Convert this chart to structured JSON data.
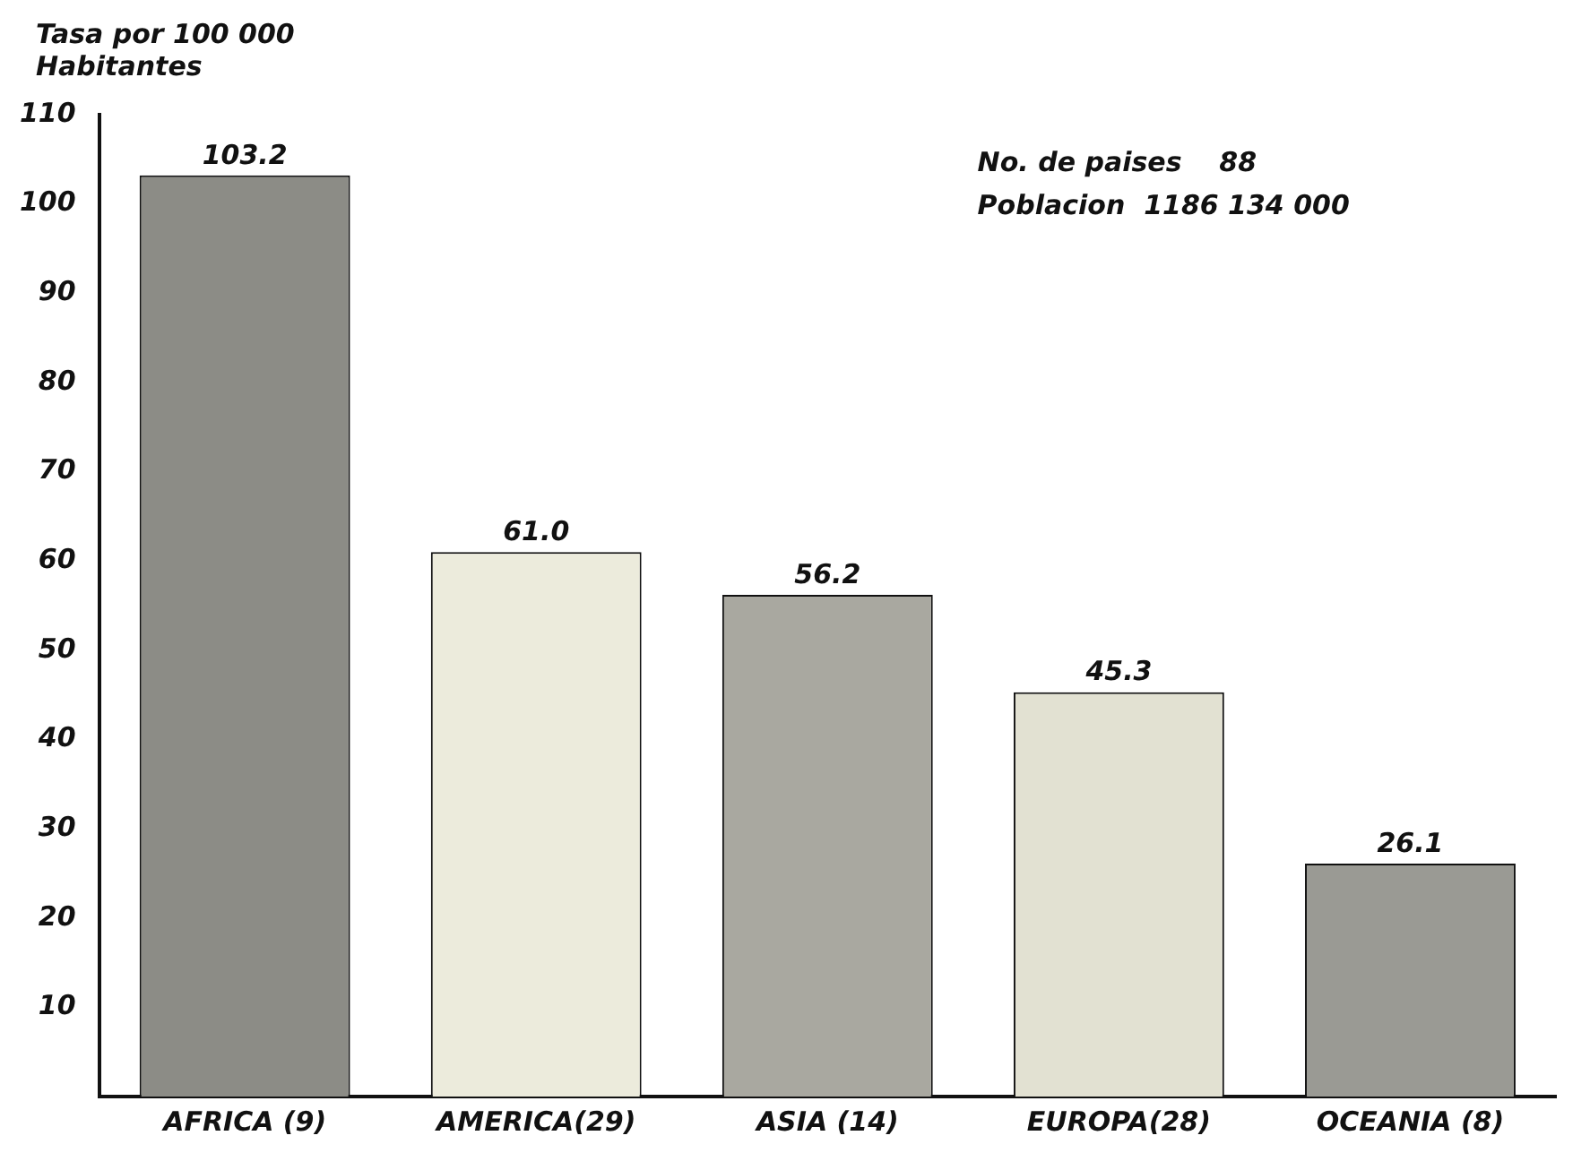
{
  "chart_data": {
    "type": "bar",
    "ylabel": "Tasa por 100 000 Habitantes",
    "categories": [
      "AFRICA (9)",
      "AMERICA(29)",
      "ASIA (14)",
      "EUROPA(28)",
      "OCEANIA (8)"
    ],
    "values": [
      103.2,
      61.0,
      56.2,
      45.3,
      26.1
    ],
    "value_labels": [
      "103.2",
      "61.0",
      "56.2",
      "45.3",
      "26.1"
    ],
    "colors": [
      "#8c8c86",
      "#ecebdc",
      "#a9a8a0",
      "#e2e1d2",
      "#9a9a94"
    ],
    "annotations": [
      "No. de paises    88",
      "Poblacion  1186 134 000"
    ],
    "ylim": [
      0,
      110
    ],
    "yticks": [
      10,
      20,
      30,
      40,
      50,
      60,
      70,
      80,
      90,
      100,
      110
    ],
    "grid": false,
    "legend": false
  }
}
